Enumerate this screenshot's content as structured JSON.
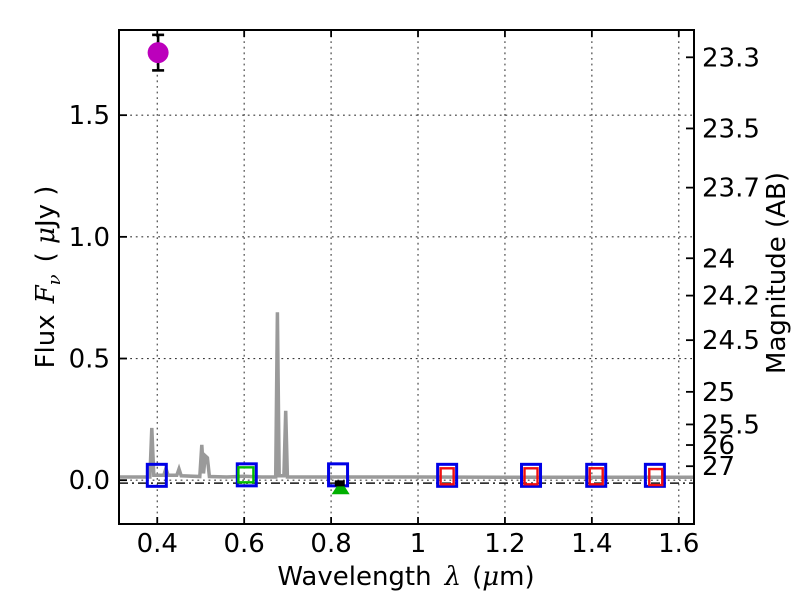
{
  "labels": {
    "xlabel_word": "Wavelength",
    "xlabel_lambda": "λ",
    "xlabel_open": "(",
    "xlabel_mu": "μ",
    "xlabel_close": "m)",
    "ylabel_word": "Flux",
    "ylabel_symbol": "F",
    "ylabel_sub": "ν",
    "ylabel_open": "(",
    "ylabel_mu": "μ",
    "ylabel_close": "Jy )",
    "ylabel_right": "Magnitude (AB)"
  },
  "chart_data": {
    "type": "line+scatter",
    "title": "",
    "xlabel": "Wavelength λ (μm)",
    "ylabel": "Flux Fν ( μJy )",
    "ylabel_right": "Magnitude (AB)",
    "xlim": [
      0.312,
      1.635
    ],
    "ylim": [
      -0.18,
      1.85
    ],
    "grid": "dotted",
    "x_ticks": [
      "0.4",
      "0.6",
      "0.8",
      "1",
      "1.2",
      "1.4",
      "1.6"
    ],
    "x_tick_values": [
      0.4,
      0.6,
      0.8,
      1.0,
      1.2,
      1.4,
      1.6
    ],
    "y_ticks_left": [
      "0.0",
      "0.5",
      "1.0",
      "1.5"
    ],
    "y_tick_values_left": [
      0.0,
      0.5,
      1.0,
      1.5
    ],
    "y_ticks_right": [
      "23.3",
      "23.5",
      "23.7",
      "24",
      "24.2",
      "24.5",
      "25",
      "25.5",
      "26",
      "27"
    ],
    "y_tick_values_right": [
      23.3,
      23.5,
      23.7,
      24,
      24.2,
      24.5,
      25,
      25.5,
      26,
      27
    ],
    "ab_zeropoint": 23.9,
    "zero_line_flux": -0.012,
    "spectrum": {
      "name": "model-spectrum",
      "color": "#9a9a9a",
      "linewidth": 3.5,
      "points": [
        [
          0.312,
          0.013
        ],
        [
          0.383,
          0.013
        ],
        [
          0.3875,
          0.215
        ],
        [
          0.392,
          0.02
        ],
        [
          0.415,
          0.02
        ],
        [
          0.42,
          0.048
        ],
        [
          0.425,
          0.02
        ],
        [
          0.445,
          0.02
        ],
        [
          0.45,
          0.046
        ],
        [
          0.455,
          0.018
        ],
        [
          0.498,
          0.015
        ],
        [
          0.5025,
          0.145
        ],
        [
          0.5065,
          0.028
        ],
        [
          0.5105,
          0.1
        ],
        [
          0.5155,
          0.092
        ],
        [
          0.52,
          0.015
        ],
        [
          0.56,
          0.013
        ],
        [
          0.6,
          0.016
        ],
        [
          0.64,
          0.013
        ],
        [
          0.6725,
          0.013
        ],
        [
          0.6765,
          0.69
        ],
        [
          0.6805,
          0.018
        ],
        [
          0.6915,
          0.018
        ],
        [
          0.6955,
          0.285
        ],
        [
          0.6995,
          0.013
        ],
        [
          0.8,
          0.013
        ],
        [
          1.0,
          0.013
        ],
        [
          1.2,
          0.012
        ],
        [
          1.4,
          0.012
        ],
        [
          1.635,
          0.012
        ]
      ]
    },
    "markers": [
      {
        "name": "observed-photometry-blue-square",
        "marker": "open-square",
        "color": "#0000e6",
        "w": 19,
        "h": 22,
        "linewidth": 3,
        "points": [
          [
            0.399,
            0.02
          ],
          [
            0.606,
            0.022
          ],
          [
            0.816,
            0.022
          ],
          [
            1.067,
            0.02
          ],
          [
            1.26,
            0.02
          ],
          [
            1.41,
            0.02
          ],
          [
            1.545,
            0.02
          ]
        ]
      },
      {
        "name": "model-photometry-green-square",
        "marker": "open-square",
        "color": "#00bb00",
        "w": 15,
        "h": 15,
        "linewidth": 2.4,
        "points": [
          [
            0.604,
            0.022
          ]
        ]
      },
      {
        "name": "model-photometry-red-square",
        "marker": "open-square",
        "color": "#f01010",
        "w": 13,
        "h": 16,
        "linewidth": 2.4,
        "points": [
          [
            1.067,
            0.016
          ],
          [
            1.26,
            0.016
          ],
          [
            1.41,
            0.016
          ],
          [
            1.547,
            0.013
          ]
        ]
      },
      {
        "name": "upper-limit-green-triangle",
        "marker": "triangle-up",
        "color": "#00b000",
        "w": 18,
        "h": 14,
        "points": [
          [
            0.822,
            -0.029
          ]
        ]
      },
      {
        "name": "black-point",
        "marker": "filled-rect",
        "color": "#000000",
        "w": 10,
        "h": 6,
        "points": [
          [
            0.82,
            -0.013
          ]
        ]
      },
      {
        "name": "detection-magenta-circle",
        "marker": "circle",
        "color": "#bc00bc",
        "r": 10.5,
        "yerr": 0.073,
        "errorbar_color": "#000000",
        "points": [
          [
            0.402,
            1.757
          ]
        ]
      }
    ]
  }
}
